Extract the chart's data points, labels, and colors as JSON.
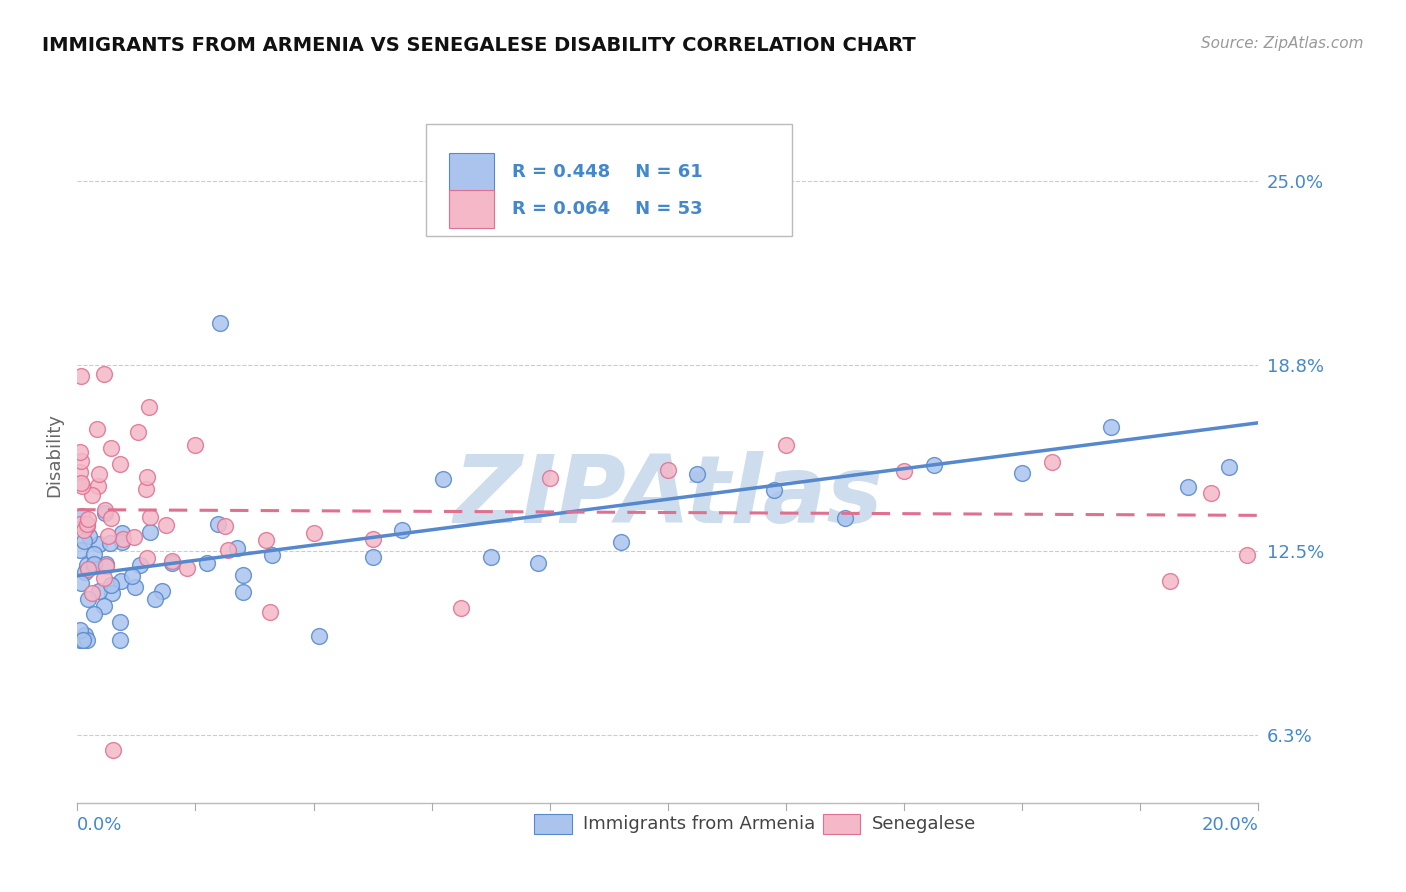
{
  "title": "IMMIGRANTS FROM ARMENIA VS SENEGALESE DISABILITY CORRELATION CHART",
  "source": "Source: ZipAtlas.com",
  "ylabel": "Disability",
  "ytick_vals": [
    6.3,
    12.5,
    18.8,
    25.0
  ],
  "ytick_labels": [
    "6.3%",
    "12.5%",
    "18.8%",
    "25.0%"
  ],
  "xlim": [
    0.0,
    20.0
  ],
  "ylim": [
    4.0,
    27.5
  ],
  "series1_label": "Immigrants from Armenia",
  "series1_R": "0.448",
  "series1_N": "61",
  "series1_color": "#aac4ee",
  "series1_edge": "#5588cc",
  "series2_label": "Senegalese",
  "series2_R": "0.064",
  "series2_N": "53",
  "series2_color": "#f4b8c8",
  "series2_edge": "#e07090",
  "watermark": "ZIPAtlas",
  "watermark_color": "#cddded",
  "background_color": "#ffffff",
  "grid_color": "#cccccc",
  "title_color": "#111111",
  "axis_label_color": "#4488cc",
  "legend_R_color": "#4488cc"
}
